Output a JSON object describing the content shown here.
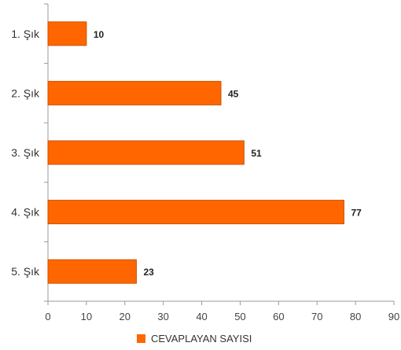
{
  "chart_data": {
    "type": "bar",
    "orientation": "horizontal",
    "categories": [
      "1. Şık",
      "2. Şık",
      "3. Şık",
      "4. Şık",
      "5. Şık"
    ],
    "series": [
      {
        "name": "CEVAPLAYAN SAYISI",
        "values": [
          10,
          45,
          51,
          77,
          23
        ],
        "color": "#ff6600"
      }
    ],
    "xlim": [
      0,
      90
    ],
    "x_ticks": [
      0,
      10,
      20,
      30,
      40,
      50,
      60,
      70,
      80,
      90
    ],
    "data_labels": true,
    "grid": false,
    "legend_position": "bottom"
  },
  "colors": {
    "bar": "#ff6600",
    "bar_edge": "#cc5200",
    "axis": "#999999"
  }
}
